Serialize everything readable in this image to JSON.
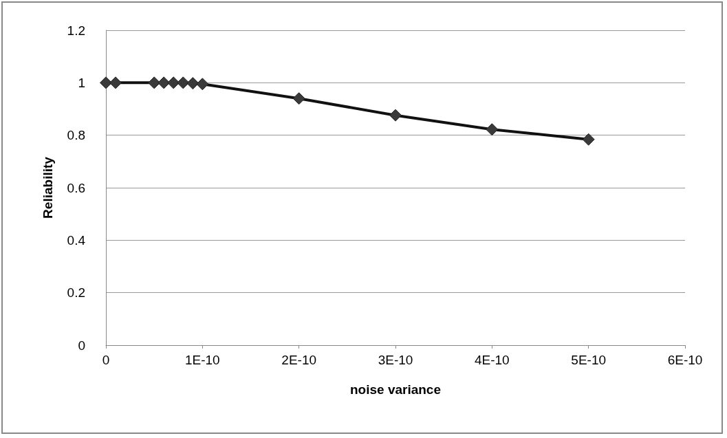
{
  "chart_data": {
    "type": "line",
    "xlabel": "noise variance",
    "ylabel": "Reliability",
    "x": [
      0,
      1e-11,
      5e-11,
      6e-11,
      7e-11,
      8e-11,
      9e-11,
      1e-10,
      2e-10,
      3e-10,
      4e-10,
      5e-10
    ],
    "series": [
      {
        "color": "#3a3a3a",
        "values": [
          1,
          1,
          1,
          1,
          1,
          1,
          0.998,
          0.995,
          0.94,
          0.876,
          0.822,
          0.784
        ]
      }
    ],
    "xlim": [
      0,
      6e-10
    ],
    "xticks": [
      0,
      {
        "value": 1e-10,
        "label": "1E-10"
      },
      {
        "value": 2e-10,
        "label": "2E-10"
      },
      {
        "value": 3e-10,
        "label": "3E-10"
      },
      {
        "value": 4e-10,
        "label": "4E-10"
      },
      {
        "value": 5e-10,
        "label": "5E-10"
      },
      {
        "value": 6e-10,
        "label": "6E-10"
      }
    ],
    "ylim": [
      0,
      1.2
    ],
    "yticks": [
      0,
      0.2,
      0.4,
      0.6,
      0.8,
      1,
      1.2
    ],
    "grid": "y",
    "marker": "diamond",
    "line_style": "solid"
  }
}
